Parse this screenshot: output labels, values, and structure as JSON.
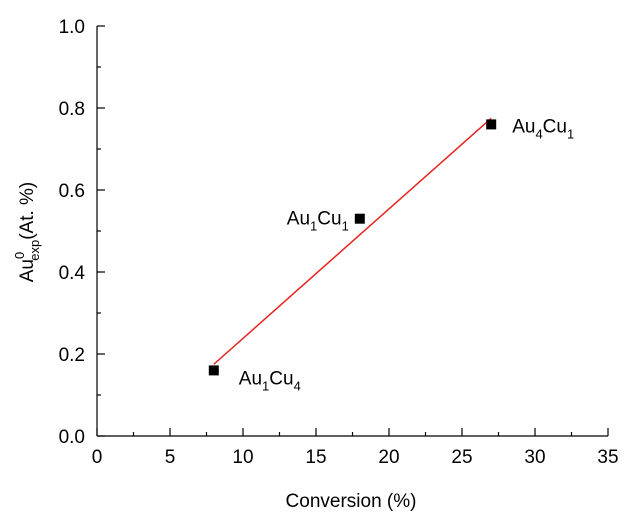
{
  "chart_data": {
    "type": "scatter",
    "xlabel": "Conversion (%)",
    "ylabel": {
      "base": "Au",
      "superscript": "0",
      "subscript": "exp",
      "suffix": "(At. %)"
    },
    "xlim": [
      0,
      35
    ],
    "ylim": [
      0.0,
      1.0
    ],
    "x_ticks": [
      "0",
      "5",
      "10",
      "15",
      "20",
      "25",
      "30",
      "35"
    ],
    "y_ticks": [
      "0.0",
      "0.2",
      "0.4",
      "0.6",
      "0.8",
      "1.0"
    ],
    "points": [
      {
        "x": 8,
        "y": 0.16,
        "label": {
          "a": "Au",
          "i": "1",
          "b": "Cu",
          "j": "4"
        }
      },
      {
        "x": 18,
        "y": 0.53,
        "label": {
          "a": "Au",
          "i": "1",
          "b": "Cu",
          "j": "1"
        }
      },
      {
        "x": 27,
        "y": 0.76,
        "label": {
          "a": "Au",
          "i": "4",
          "b": "Cu",
          "j": "1"
        }
      }
    ],
    "fit_line": {
      "x": [
        8,
        27
      ],
      "y": [
        0.175,
        0.775
      ],
      "color": "#e8211d"
    },
    "marker_color": "#000000",
    "grid": false
  }
}
